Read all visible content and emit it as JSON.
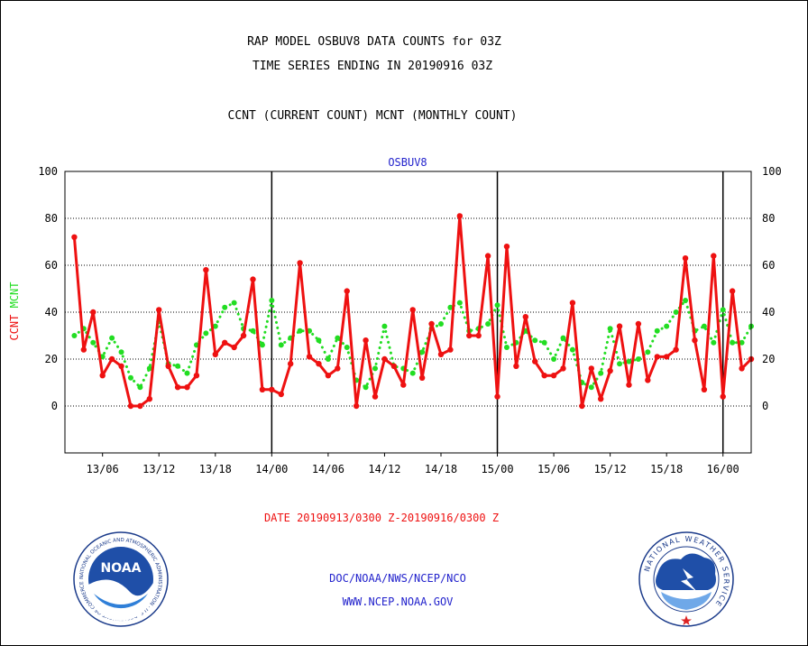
{
  "header": {
    "title_line1": "RAP MODEL OSBUV8 DATA COUNTS for 03Z",
    "title_line2": "TIME SERIES ENDING IN 20190916 03Z",
    "subtitle": "CCNT (CURRENT COUNT) MCNT (MONTHLY COUNT)"
  },
  "footer": {
    "date_range": "DATE 20190913/0300 Z-20190916/0300 Z",
    "org_line": "DOC/NOAA/NWS/NCEP/NCO",
    "website": "WWW.NCEP.NOAA.GOV"
  },
  "logos": {
    "noaa_text": "NOAA",
    "noaa_ring": "NATIONAL OCEANIC AND ATMOSPHERIC ADMINISTRATION · U.S. DEPARTMENT OF COMMERCE",
    "nws_ring": "NATIONAL WEATHER SERVICE"
  },
  "colors": {
    "ccnt": "#ee1111",
    "mcnt": "#22dd22",
    "accent_blue": "#2222cc",
    "grid": "#000000"
  },
  "chart_data": {
    "type": "line",
    "title": "OSBUV8",
    "ylabel_left_ccnt": "CCNT",
    "ylabel_left_mcnt": "MCNT",
    "ylim": [
      -20,
      100
    ],
    "yticks": [
      0,
      20,
      40,
      60,
      80,
      100
    ],
    "xlim": [
      2,
      75
    ],
    "x_unit": "hours from 20190913 00Z",
    "xtick_values": [
      6,
      12,
      18,
      24,
      30,
      36,
      42,
      48,
      54,
      60,
      66,
      72
    ],
    "xtick_labels": [
      "13/06",
      "13/12",
      "13/18",
      "14/00",
      "14/06",
      "14/12",
      "14/18",
      "15/00",
      "15/06",
      "15/12",
      "15/18",
      "16/00"
    ],
    "day_boundaries": [
      24,
      48,
      72
    ],
    "grid": "horizontal",
    "series": [
      {
        "name": "CCNT",
        "color": "#ee1111",
        "style": "solid",
        "x": [
          3,
          4,
          5,
          6,
          7,
          8,
          9,
          10,
          11,
          12,
          13,
          14,
          15,
          16,
          17,
          18,
          19,
          20,
          21,
          22,
          23,
          24,
          25,
          26,
          27,
          28,
          29,
          30,
          31,
          32,
          33,
          34,
          35,
          36,
          37,
          38,
          39,
          40,
          41,
          42,
          43,
          44,
          45,
          46,
          47,
          48,
          49,
          50,
          51,
          52,
          53,
          54,
          55,
          56,
          57,
          58,
          59,
          60,
          61,
          62,
          63,
          64,
          65,
          66,
          67,
          68,
          69,
          70,
          71,
          72,
          73,
          74,
          75
        ],
        "values": [
          72,
          24,
          40,
          13,
          20,
          17,
          0,
          0,
          3,
          41,
          17,
          8,
          8,
          13,
          58,
          22,
          27,
          25,
          30,
          54,
          7,
          7,
          5,
          18,
          61,
          21,
          18,
          13,
          16,
          49,
          0,
          28,
          4,
          20,
          17,
          9,
          41,
          12,
          35,
          22,
          24,
          81,
          30,
          30,
          64,
          4,
          68,
          17,
          38,
          19,
          13,
          13,
          16,
          44,
          0,
          16,
          3,
          15,
          34,
          9,
          35,
          11,
          21,
          21,
          24,
          63,
          28,
          7,
          64,
          4,
          49,
          16,
          20
        ]
      },
      {
        "name": "MCNT",
        "color": "#22dd22",
        "style": "dotted",
        "x": [
          3,
          4,
          5,
          6,
          7,
          8,
          9,
          10,
          11,
          12,
          13,
          14,
          15,
          16,
          17,
          18,
          19,
          20,
          21,
          22,
          23,
          24,
          25,
          26,
          27,
          28,
          29,
          30,
          31,
          32,
          33,
          34,
          35,
          36,
          37,
          38,
          39,
          40,
          41,
          42,
          43,
          44,
          45,
          46,
          47,
          48,
          49,
          50,
          51,
          52,
          53,
          54,
          55,
          56,
          57,
          58,
          59,
          60,
          61,
          62,
          63,
          64,
          65,
          66,
          67,
          68,
          69,
          70,
          71,
          72,
          73,
          74,
          75
        ],
        "values": [
          30,
          33,
          27,
          21,
          29,
          23,
          12,
          8,
          16,
          36,
          18,
          17,
          14,
          26,
          31,
          34,
          42,
          44,
          33,
          32,
          26,
          45,
          26,
          29,
          32,
          32,
          28,
          20,
          29,
          25,
          11,
          8,
          16,
          34,
          17,
          16,
          14,
          23,
          33,
          35,
          42,
          44,
          32,
          33,
          35,
          43,
          25,
          27,
          32,
          28,
          27,
          20,
          29,
          24,
          10,
          8,
          14,
          33,
          18,
          19,
          20,
          23,
          32,
          34,
          40,
          45,
          32,
          34,
          27,
          41,
          27,
          27,
          34
        ]
      }
    ]
  }
}
